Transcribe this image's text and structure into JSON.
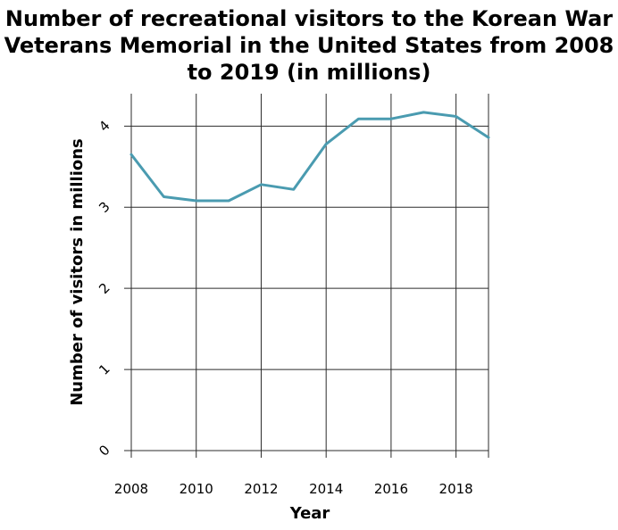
{
  "chart_data": {
    "type": "line",
    "title": "Number of recreational visitors to the Korean War Veterans Memorial in the United States from 2008 to 2019 (in millions)",
    "xlabel": "Year",
    "ylabel": "Number of visitors in millions",
    "xlim": [
      2008,
      2019
    ],
    "ylim": [
      0,
      4.4
    ],
    "xticks": [
      2008,
      2010,
      2012,
      2014,
      2016,
      2018
    ],
    "xtick_labels": [
      "2008",
      "2010",
      "2012",
      "2014",
      "2016",
      "2018"
    ],
    "yticks": [
      0,
      1,
      2,
      3,
      4
    ],
    "ytick_labels": [
      "0",
      "1",
      "2",
      "3",
      "4"
    ],
    "grid": true,
    "series": [
      {
        "color": "#4a9bb0",
        "x": [
          2008,
          2009,
          2010,
          2011,
          2012,
          2013,
          2014,
          2015,
          2016,
          2017,
          2018,
          2019
        ],
        "y": [
          3.65,
          3.13,
          3.08,
          3.08,
          3.28,
          3.22,
          3.78,
          4.09,
          4.09,
          4.17,
          4.12,
          3.86
        ]
      }
    ]
  }
}
